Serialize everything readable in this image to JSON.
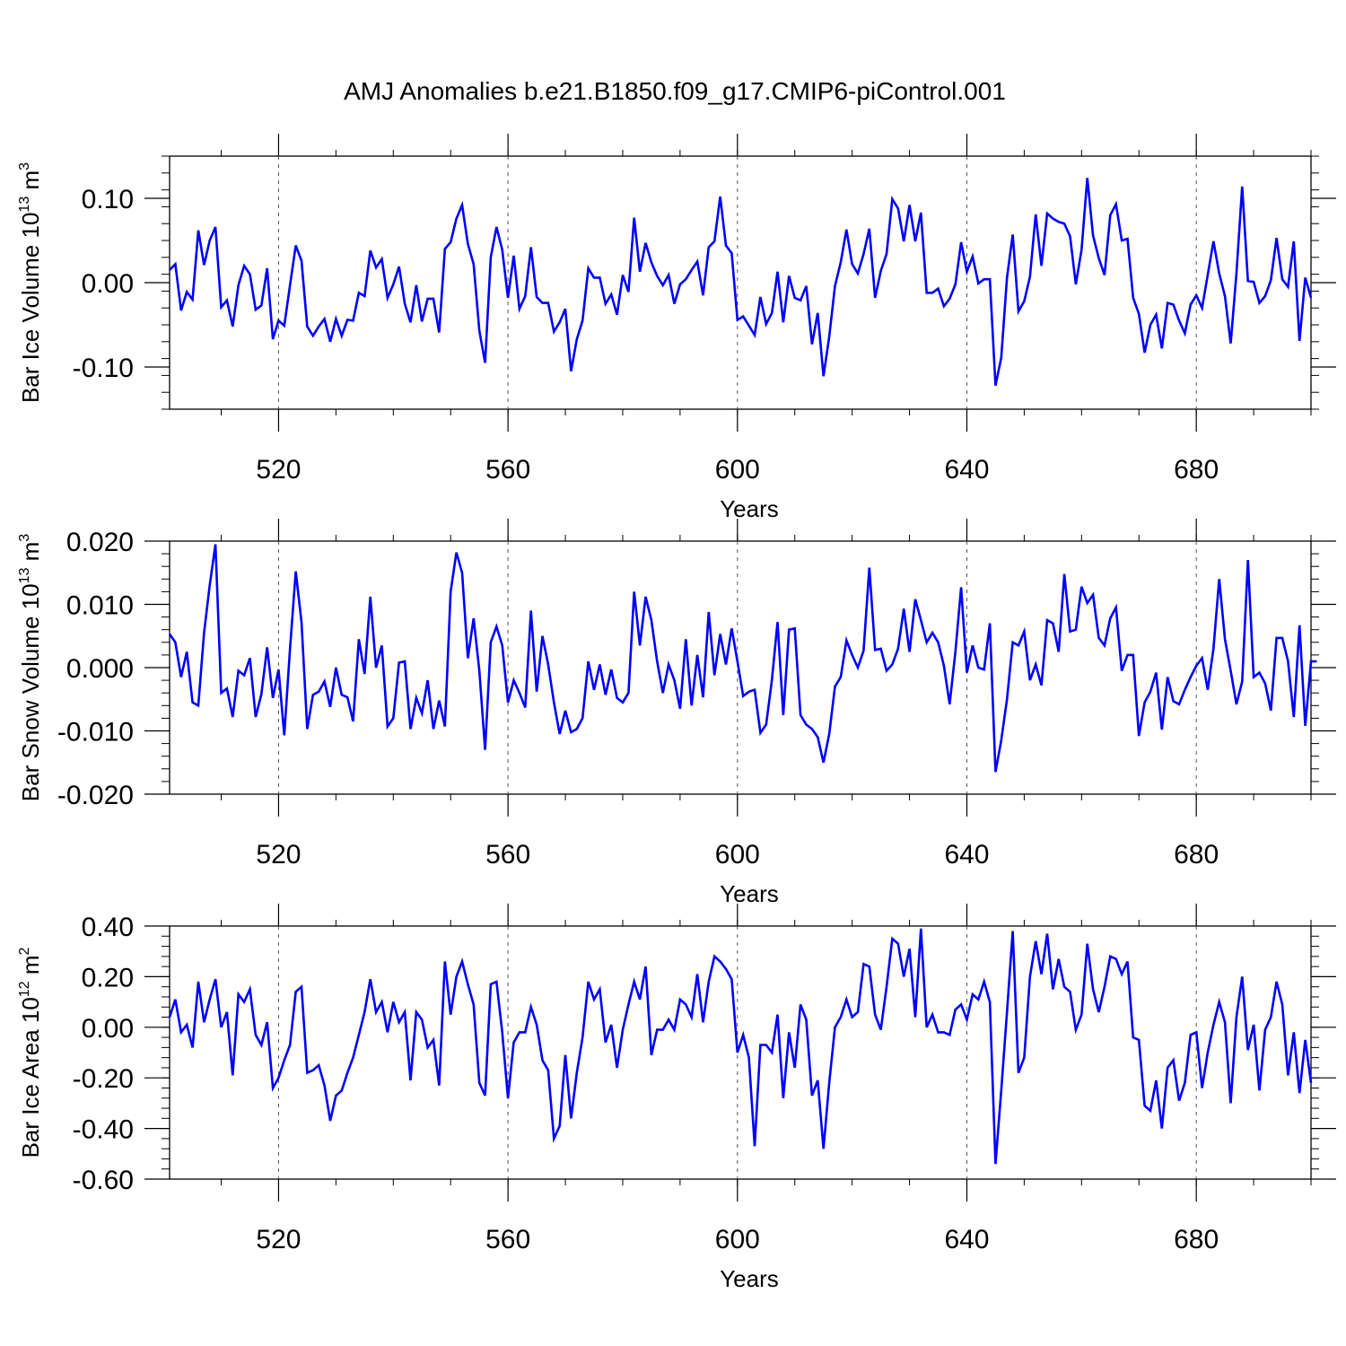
{
  "title": "AMJ Anomalies b.e21.B1850.f09_g17.CMIP6-piControl.001",
  "chart_data": [
    {
      "type": "line",
      "ylabel_base": "Bar Ice Volume 10",
      "ylabel_exp": "13",
      "ylabel_unit": " m",
      "ylabel_unit_exp": "3",
      "xlabel": "Years",
      "xlim": [
        501,
        700
      ],
      "ylim": [
        -0.15,
        0.15
      ],
      "x_ticks": [
        520,
        560,
        600,
        640,
        680
      ],
      "y_ticks": [
        -0.1,
        0.0,
        0.1
      ],
      "y_tick_labels": [
        "-0.10",
        "0.00",
        "0.10"
      ],
      "y_minor_step": 0.02,
      "grid": "vertical dashed at major x ticks",
      "line_color": "#0000ff",
      "x_start": 501,
      "y": [
        0.015,
        0.022,
        -0.033,
        -0.011,
        -0.02,
        0.062,
        0.021,
        0.05,
        0.066,
        -0.029,
        -0.021,
        -0.052,
        -0.003,
        0.02,
        0.01,
        -0.032,
        -0.027,
        0.017,
        -0.067,
        -0.045,
        -0.051,
        -0.003,
        0.044,
        0.026,
        -0.052,
        -0.063,
        -0.052,
        -0.043,
        -0.07,
        -0.043,
        -0.063,
        -0.044,
        -0.045,
        -0.012,
        -0.016,
        0.038,
        0.018,
        0.028,
        -0.018,
        -0.002,
        0.019,
        -0.025,
        -0.047,
        -0.003,
        -0.046,
        -0.019,
        -0.019,
        -0.059,
        0.04,
        0.048,
        0.076,
        0.092,
        0.046,
        0.022,
        -0.057,
        -0.095,
        0.03,
        0.066,
        0.039,
        -0.018,
        0.032,
        -0.031,
        -0.016,
        0.042,
        -0.017,
        -0.024,
        -0.024,
        -0.058,
        -0.047,
        -0.031,
        -0.105,
        -0.067,
        -0.045,
        0.017,
        0.006,
        0.006,
        -0.025,
        -0.014,
        -0.038,
        0.009,
        -0.011,
        0.077,
        0.013,
        0.047,
        0.024,
        0.008,
        -0.003,
        0.009,
        -0.025,
        -0.002,
        0.004,
        0.015,
        0.025,
        -0.015,
        0.042,
        0.049,
        0.102,
        0.044,
        0.035,
        -0.044,
        -0.04,
        -0.051,
        -0.062,
        -0.017,
        -0.049,
        -0.036,
        0.013,
        -0.047,
        0.008,
        -0.018,
        -0.021,
        -0.004,
        -0.073,
        -0.036,
        -0.111,
        -0.064,
        -0.004,
        0.024,
        0.063,
        0.022,
        0.011,
        0.034,
        0.064,
        -0.018,
        0.014,
        0.034,
        0.099,
        0.088,
        0.049,
        0.092,
        0.049,
        0.083,
        -0.012,
        -0.012,
        -0.007,
        -0.028,
        -0.019,
        -0.002,
        0.048,
        0.013,
        0.031,
        -0.001,
        0.004,
        0.004,
        -0.122,
        -0.089,
        0.006,
        0.057,
        -0.034,
        -0.022,
        0.007,
        0.081,
        0.02,
        0.082,
        0.076,
        0.072,
        0.07,
        0.055,
        -0.002,
        0.039,
        0.124,
        0.056,
        0.029,
        0.009,
        0.08,
        0.093,
        0.05,
        0.052,
        -0.018,
        -0.037,
        -0.083,
        -0.05,
        -0.038,
        -0.078,
        -0.024,
        -0.026,
        -0.045,
        -0.06,
        -0.026,
        -0.015,
        -0.03,
        0.009,
        0.049,
        0.011,
        -0.016,
        -0.072,
        0.011,
        0.114,
        0.002,
        0.001,
        -0.024,
        -0.016,
        0.003,
        0.053,
        0.004,
        -0.005,
        0.049,
        -0.069,
        0.006,
        -0.018
      ]
    },
    {
      "type": "line",
      "ylabel_base": "Bar Snow Volume 10",
      "ylabel_exp": "13",
      "ylabel_unit": " m",
      "ylabel_unit_exp": "3",
      "xlabel": "Years",
      "xlim": [
        501,
        700
      ],
      "ylim": [
        -0.02,
        0.02
      ],
      "x_ticks": [
        520,
        560,
        600,
        640,
        680
      ],
      "y_ticks": [
        -0.02,
        -0.01,
        0.0,
        0.01,
        0.02
      ],
      "y_tick_labels": [
        "-0.020",
        "-0.010",
        "0.000",
        "0.010",
        "0.020"
      ],
      "y_minor_step": 0.002,
      "grid": "vertical dashed at major x ticks",
      "line_color": "#0000ff",
      "x_start": 501,
      "y": [
        0.0053,
        0.004,
        -0.0015,
        0.0025,
        -0.0055,
        -0.006,
        0.0055,
        0.013,
        0.0195,
        -0.004,
        -0.0033,
        -0.0078,
        -0.0005,
        -0.0012,
        0.0015,
        -0.0078,
        -0.0042,
        0.0032,
        -0.0048,
        -0.0003,
        -0.0107,
        0.003,
        0.0152,
        0.0072,
        -0.0097,
        -0.0043,
        -0.0038,
        -0.0022,
        -0.0062,
        0.0,
        -0.0043,
        -0.0047,
        -0.0085,
        0.0045,
        -0.001,
        0.0112,
        0.0,
        0.0035,
        -0.0093,
        -0.008,
        0.0008,
        0.001,
        -0.0097,
        -0.0048,
        -0.0072,
        -0.002,
        -0.0097,
        -0.0052,
        -0.0093,
        0.012,
        0.0182,
        0.015,
        0.0015,
        0.0078,
        -0.0005,
        -0.013,
        0.004,
        0.0065,
        0.0035,
        -0.0055,
        -0.002,
        -0.004,
        -0.0063,
        0.009,
        -0.0038,
        0.005,
        0.0005,
        -0.0055,
        -0.0105,
        -0.0068,
        -0.0102,
        -0.0097,
        -0.008,
        0.001,
        -0.0035,
        0.0005,
        -0.0043,
        -0.0003,
        -0.0048,
        -0.0055,
        -0.004,
        0.012,
        0.0035,
        0.0112,
        0.0075,
        0.001,
        -0.004,
        0.0005,
        -0.002,
        -0.0065,
        0.0045,
        -0.006,
        0.002,
        -0.0047,
        0.0088,
        -0.0012,
        0.0053,
        0.0005,
        0.0062,
        0.001,
        -0.0045,
        -0.0038,
        -0.0035,
        -0.0103,
        -0.009,
        -0.002,
        0.0072,
        -0.0075,
        0.006,
        0.0062,
        -0.0075,
        -0.009,
        -0.0097,
        -0.011,
        -0.015,
        -0.0105,
        -0.003,
        -0.0015,
        0.0043,
        0.002,
        0.0,
        0.0027,
        0.0158,
        0.0028,
        0.003,
        -0.0005,
        0.0005,
        0.003,
        0.0093,
        0.0025,
        0.0108,
        0.0075,
        0.004,
        0.0055,
        0.004,
        0.0003,
        -0.0058,
        0.0025,
        0.0127,
        -0.0008,
        0.0035,
        0.0,
        -0.0003,
        0.007,
        -0.0165,
        -0.0115,
        -0.005,
        0.004,
        0.0035,
        0.0057,
        -0.002,
        0.0005,
        -0.0028,
        0.0075,
        0.007,
        0.0025,
        0.0148,
        0.0057,
        0.006,
        0.0128,
        0.0102,
        0.0115,
        0.0047,
        0.0035,
        0.0078,
        0.0095,
        -0.0005,
        0.002,
        0.002,
        -0.0108,
        -0.0055,
        -0.0038,
        -0.0008,
        -0.0098,
        -0.0015,
        -0.0053,
        -0.0058,
        -0.0035,
        -0.0015,
        0.0003,
        0.0015,
        -0.0035,
        0.003,
        0.014,
        0.0045,
        -0.0005,
        -0.0058,
        -0.0022,
        0.017,
        -0.0015,
        -0.0008,
        -0.0025,
        -0.0068,
        0.0047,
        0.0047,
        0.001,
        -0.0078,
        0.0067,
        -0.0092,
        0.001,
        0.001
      ]
    },
    {
      "type": "line",
      "ylabel_base": "Bar Ice Area 10",
      "ylabel_exp": "12",
      "ylabel_unit": " m",
      "ylabel_unit_exp": "2",
      "xlabel": "Years",
      "xlim": [
        501,
        700
      ],
      "ylim": [
        -0.6,
        0.4
      ],
      "x_ticks": [
        520,
        560,
        600,
        640,
        680
      ],
      "y_ticks": [
        -0.6,
        -0.4,
        -0.2,
        0.0,
        0.2,
        0.4
      ],
      "y_tick_labels": [
        "-0.60",
        "-0.40",
        "-0.20",
        "0.00",
        "0.20",
        "0.40"
      ],
      "y_minor_step": 0.04,
      "grid": "vertical dashed at major x ticks",
      "line_color": "#0000ff",
      "x_start": 501,
      "y": [
        0.04,
        0.11,
        -0.02,
        0.01,
        -0.08,
        0.18,
        0.02,
        0.11,
        0.19,
        0.0,
        0.06,
        -0.19,
        0.13,
        0.1,
        0.15,
        -0.03,
        -0.07,
        0.02,
        -0.24,
        -0.2,
        -0.13,
        -0.07,
        0.14,
        0.16,
        -0.18,
        -0.17,
        -0.15,
        -0.23,
        -0.37,
        -0.27,
        -0.25,
        -0.18,
        -0.12,
        -0.03,
        0.06,
        0.19,
        0.06,
        0.1,
        -0.02,
        0.1,
        0.02,
        0.06,
        -0.21,
        0.06,
        0.03,
        -0.08,
        -0.05,
        -0.23,
        0.26,
        0.05,
        0.2,
        0.26,
        0.17,
        0.09,
        -0.22,
        -0.27,
        0.17,
        0.18,
        -0.02,
        -0.28,
        -0.06,
        -0.02,
        -0.02,
        0.08,
        0.01,
        -0.13,
        -0.17,
        -0.44,
        -0.39,
        -0.11,
        -0.36,
        -0.18,
        -0.04,
        0.18,
        0.11,
        0.15,
        -0.06,
        0.01,
        -0.16,
        -0.01,
        0.09,
        0.18,
        0.11,
        0.24,
        -0.11,
        -0.01,
        -0.01,
        0.03,
        -0.01,
        0.11,
        0.09,
        0.04,
        0.21,
        0.02,
        0.18,
        0.28,
        0.26,
        0.23,
        0.19,
        -0.1,
        -0.03,
        -0.12,
        -0.47,
        -0.07,
        -0.07,
        -0.1,
        0.05,
        -0.28,
        -0.02,
        -0.16,
        0.09,
        0.03,
        -0.27,
        -0.21,
        -0.48,
        -0.22,
        0.0,
        0.04,
        0.11,
        0.04,
        0.06,
        0.25,
        0.24,
        0.05,
        -0.01,
        0.16,
        0.35,
        0.33,
        0.2,
        0.31,
        0.04,
        0.39,
        0.0,
        0.05,
        -0.02,
        -0.02,
        -0.03,
        0.07,
        0.09,
        0.03,
        0.13,
        0.11,
        0.18,
        0.1,
        -0.54,
        -0.25,
        0.06,
        0.38,
        -0.18,
        -0.12,
        0.2,
        0.34,
        0.21,
        0.37,
        0.15,
        0.27,
        0.16,
        0.14,
        -0.01,
        0.05,
        0.33,
        0.15,
        0.06,
        0.16,
        0.28,
        0.27,
        0.21,
        0.26,
        -0.04,
        -0.05,
        -0.31,
        -0.33,
        -0.21,
        -0.4,
        -0.16,
        -0.13,
        -0.29,
        -0.22,
        -0.03,
        -0.02,
        -0.24,
        -0.1,
        0.01,
        0.1,
        0.02,
        -0.3,
        0.04,
        0.2,
        -0.09,
        0.01,
        -0.25,
        -0.01,
        0.04,
        0.18,
        0.09,
        -0.19,
        -0.02,
        -0.26,
        -0.05,
        -0.22
      ]
    }
  ]
}
